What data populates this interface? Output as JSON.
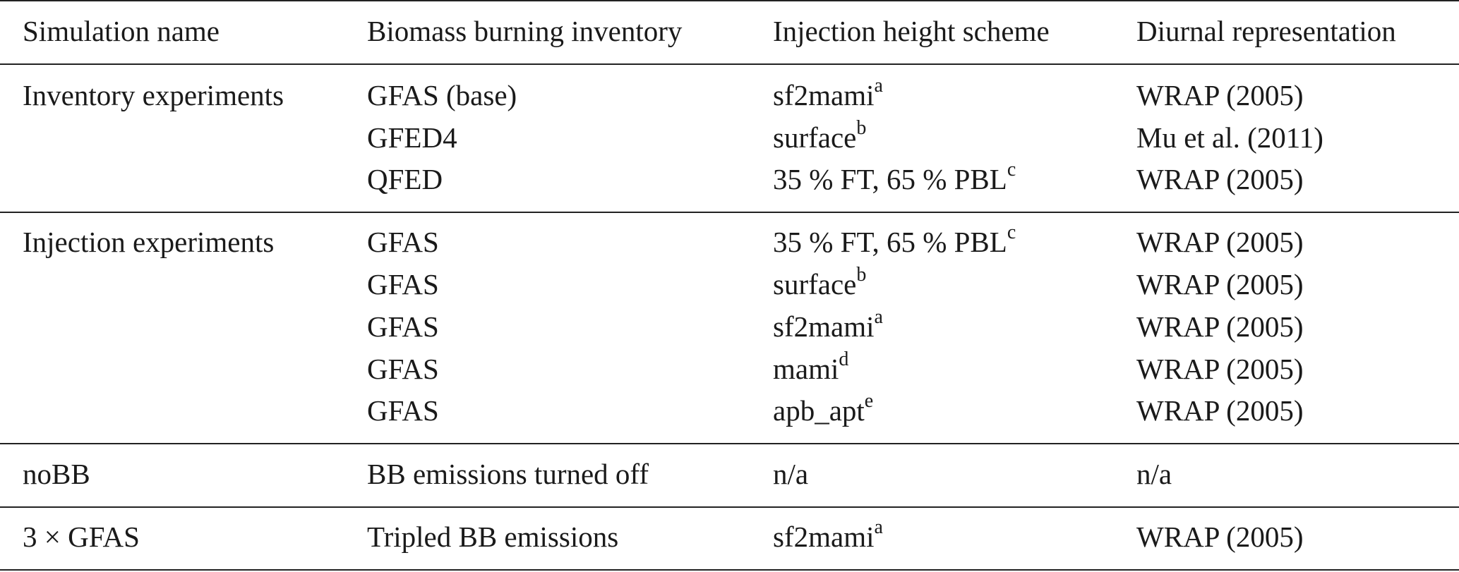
{
  "header": {
    "col1": "Simulation name",
    "col2": "Biomass burning inventory",
    "col3": "Injection height scheme",
    "col4": "Diurnal representation"
  },
  "groups": [
    {
      "name": "Inventory experiments",
      "rows": [
        {
          "inventory": "GFAS (base)",
          "scheme": "sf2mami",
          "scheme_note": "a",
          "diurnal": "WRAP (2005)"
        },
        {
          "inventory": "GFED4",
          "scheme": "surface",
          "scheme_note": "b",
          "diurnal": "Mu et al. (2011)"
        },
        {
          "inventory": "QFED",
          "scheme": "35 % FT, 65 % PBL",
          "scheme_note": "c",
          "diurnal": "WRAP (2005)"
        }
      ]
    },
    {
      "name": "Injection experiments",
      "rows": [
        {
          "inventory": "GFAS",
          "scheme": "35 % FT, 65 % PBL",
          "scheme_note": "c",
          "diurnal": "WRAP (2005)"
        },
        {
          "inventory": "GFAS",
          "scheme": "surface",
          "scheme_note": "b",
          "diurnal": "WRAP (2005)"
        },
        {
          "inventory": "GFAS",
          "scheme": "sf2mami",
          "scheme_note": "a",
          "diurnal": "WRAP (2005)"
        },
        {
          "inventory": "GFAS",
          "scheme": "mami",
          "scheme_note": "d",
          "diurnal": "WRAP (2005)"
        },
        {
          "inventory": "GFAS",
          "scheme": "apb_apt",
          "scheme_note": "e",
          "diurnal": "WRAP (2005)"
        }
      ]
    },
    {
      "name": "noBB",
      "rows": [
        {
          "inventory": "BB emissions turned off",
          "scheme": "n/a",
          "scheme_note": "",
          "diurnal": "n/a"
        }
      ]
    },
    {
      "name": "3 × GFAS",
      "rows": [
        {
          "inventory": "Tripled BB emissions",
          "scheme": "sf2mami",
          "scheme_note": "a",
          "diurnal": "WRAP (2005)"
        }
      ]
    }
  ]
}
